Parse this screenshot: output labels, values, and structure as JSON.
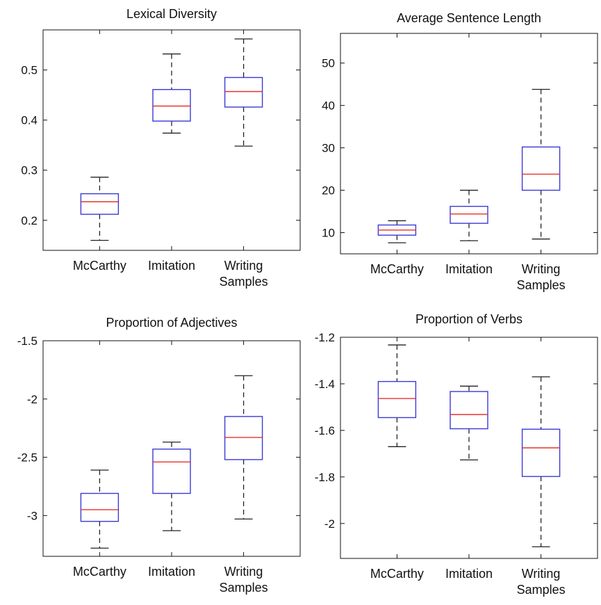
{
  "chart_data": [
    {
      "type": "boxplot",
      "title": "Lexical Diversity",
      "categories": [
        "McCarthy",
        "Imitation",
        "Writing Samples"
      ],
      "category_lines": [
        [
          "McCarthy"
        ],
        [
          "Imitation"
        ],
        [
          "Writing",
          "Samples"
        ]
      ],
      "ylim": [
        0.14,
        0.58
      ],
      "yticks": [
        0.2,
        0.3,
        0.4,
        0.5
      ],
      "ytick_labels": [
        "0.2",
        "0.3",
        "0.4",
        "0.5"
      ],
      "boxes": [
        {
          "whisker_low": 0.16,
          "q1": 0.212,
          "median": 0.237,
          "q3": 0.253,
          "whisker_high": 0.286
        },
        {
          "whisker_low": 0.374,
          "q1": 0.398,
          "median": 0.428,
          "q3": 0.461,
          "whisker_high": 0.532
        },
        {
          "whisker_low": 0.348,
          "q1": 0.426,
          "median": 0.457,
          "q3": 0.485,
          "whisker_high": 0.562
        }
      ]
    },
    {
      "type": "boxplot",
      "title": "Average Sentence Length",
      "categories": [
        "McCarthy",
        "Imitation",
        "Writing Samples"
      ],
      "category_lines": [
        [
          "McCarthy"
        ],
        [
          "Imitation"
        ],
        [
          "Writing",
          "Samples"
        ]
      ],
      "ylim": [
        5,
        57
      ],
      "yticks": [
        10,
        20,
        30,
        40,
        50
      ],
      "ytick_labels": [
        "10",
        "20",
        "30",
        "40",
        "50"
      ],
      "boxes": [
        {
          "whisker_low": 7.6,
          "q1": 9.4,
          "median": 10.6,
          "q3": 11.8,
          "whisker_high": 12.8
        },
        {
          "whisker_low": 8.1,
          "q1": 12.2,
          "median": 14.4,
          "q3": 16.2,
          "whisker_high": 20
        },
        {
          "whisker_low": 8.5,
          "q1": 20,
          "median": 23.8,
          "q3": 30.2,
          "whisker_high": 43.8
        }
      ]
    },
    {
      "type": "boxplot",
      "title": "Proportion of Adjectives",
      "categories": [
        "McCarthy",
        "Imitation",
        "Writing Samples"
      ],
      "category_lines": [
        [
          "McCarthy"
        ],
        [
          "Imitation"
        ],
        [
          "Writing",
          "Samples"
        ]
      ],
      "ylim": [
        -3.35,
        -1.5
      ],
      "yticks": [
        -3,
        -2.5,
        -2,
        -1.5
      ],
      "ytick_labels": [
        "-3",
        "-2.5",
        "-2",
        "-1.5"
      ],
      "boxes": [
        {
          "whisker_low": -3.28,
          "q1": -3.05,
          "median": -2.95,
          "q3": -2.81,
          "whisker_high": -2.61
        },
        {
          "whisker_low": -3.13,
          "q1": -2.81,
          "median": -2.54,
          "q3": -2.43,
          "whisker_high": -2.37
        },
        {
          "whisker_low": -3.03,
          "q1": -2.52,
          "median": -2.33,
          "q3": -2.15,
          "whisker_high": -1.8
        }
      ]
    },
    {
      "type": "boxplot",
      "title": "Proportion of Verbs",
      "categories": [
        "McCarthy",
        "Imitation",
        "Writing Samples"
      ],
      "category_lines": [
        [
          "McCarthy"
        ],
        [
          "Imitation"
        ],
        [
          "Writing",
          "Samples"
        ]
      ],
      "ylim": [
        -2.15,
        -1.2
      ],
      "yticks": [
        -2,
        -1.8,
        -1.6,
        -1.4,
        -1.2
      ],
      "ytick_labels": [
        "-2",
        "-1.8",
        "-1.6",
        "-1.4",
        "-1.2"
      ],
      "boxes": [
        {
          "whisker_low": -1.67,
          "q1": -1.545,
          "median": -1.463,
          "q3": -1.39,
          "whisker_high": -1.233
        },
        {
          "whisker_low": -1.727,
          "q1": -1.593,
          "median": -1.532,
          "q3": -1.433,
          "whisker_high": -1.41
        },
        {
          "whisker_low": -2.1,
          "q1": -1.798,
          "median": -1.675,
          "q3": -1.595,
          "whisker_high": -1.37
        }
      ]
    }
  ],
  "colors": {
    "box": "#3a3ad6",
    "median": "#e8322b",
    "whisker": "#222222",
    "axis": "#111111"
  }
}
